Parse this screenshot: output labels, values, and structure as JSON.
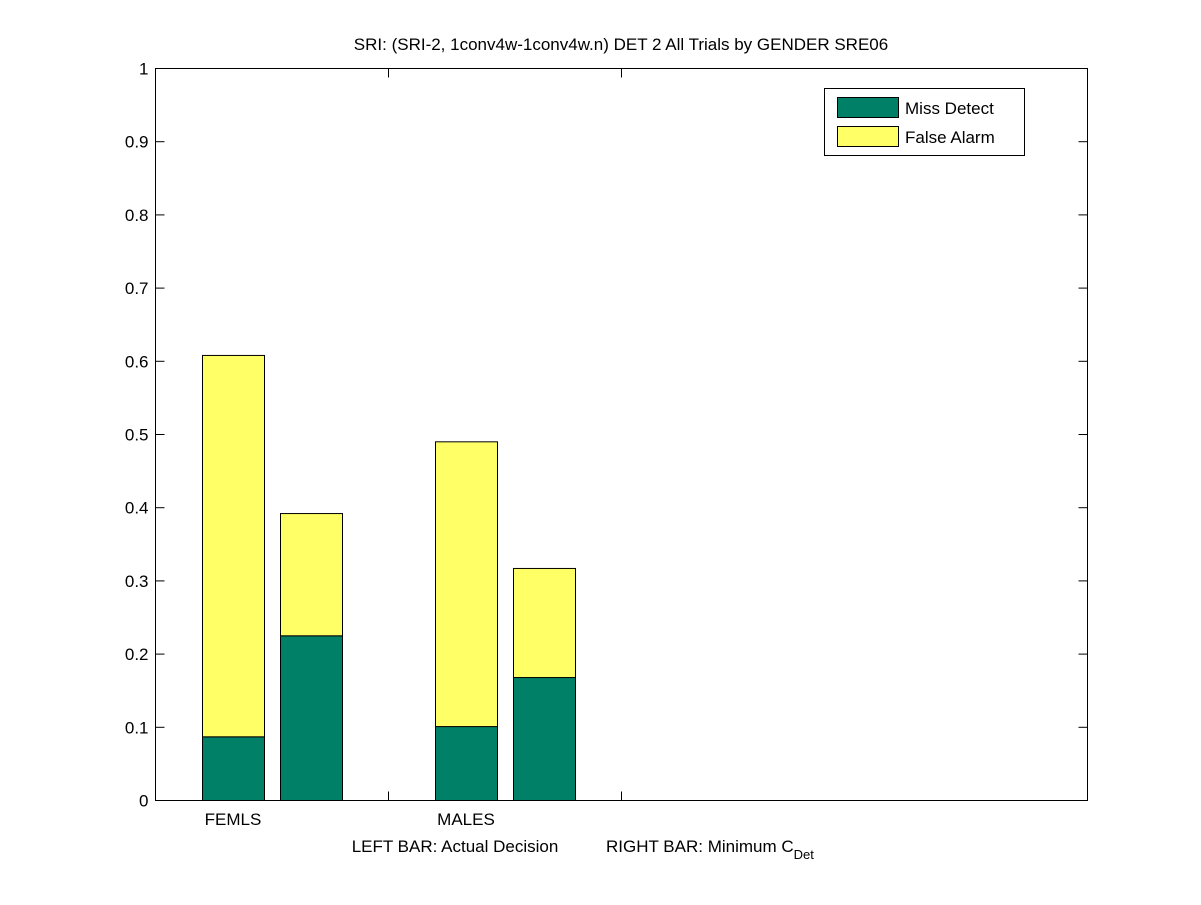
{
  "chart_data": {
    "type": "bar",
    "stacked": true,
    "title": "SRI: (SRI-2, 1conv4w-1conv4w.n) DET 2 All Trials by GENDER SRE06",
    "xlabel_left": "LEFT BAR: Actual Decision",
    "xlabel_right": "RIGHT BAR: Minimum C",
    "xlabel_right_subscript": "Det",
    "categories": [
      "FEMLS",
      "MALES"
    ],
    "bars": [
      {
        "category": "FEMLS",
        "bar": "left",
        "miss_detect": 0.087,
        "false_alarm": 0.521
      },
      {
        "category": "FEMLS",
        "bar": "right",
        "miss_detect": 0.225,
        "false_alarm": 0.167
      },
      {
        "category": "MALES",
        "bar": "left",
        "miss_detect": 0.101,
        "false_alarm": 0.389
      },
      {
        "category": "MALES",
        "bar": "right",
        "miss_detect": 0.168,
        "false_alarm": 0.149
      }
    ],
    "series": [
      {
        "name": "Miss Detect",
        "color": "#008066"
      },
      {
        "name": "False Alarm",
        "color": "#ffff66"
      }
    ],
    "ylim": [
      0,
      1
    ],
    "yticks": [
      "0",
      "0.1",
      "0.2",
      "0.3",
      "0.4",
      "0.5",
      "0.6",
      "0.7",
      "0.8",
      "0.9",
      "1"
    ],
    "grid": false,
    "legend_position": "top-right"
  }
}
